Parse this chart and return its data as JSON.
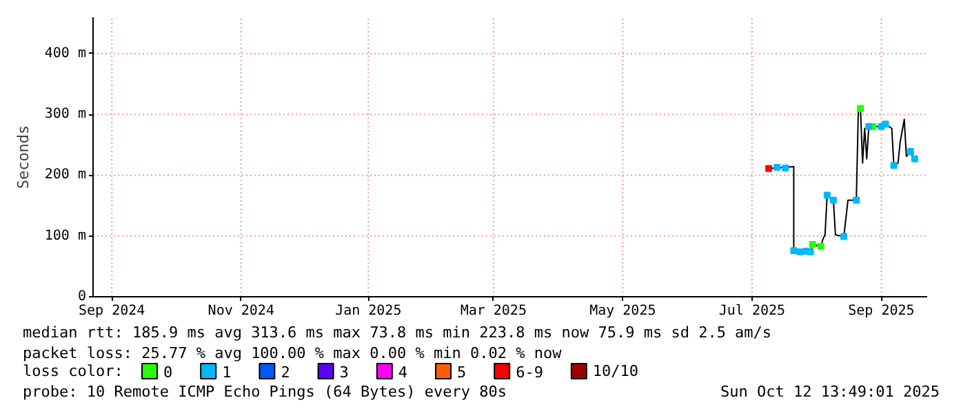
{
  "chart_data": {
    "type": "line",
    "ylabel": "Seconds",
    "xlim": [
      "2024-09-07",
      "2025-10-12"
    ],
    "ylim": [
      0,
      460
    ],
    "xticks": [
      {
        "value": "2024-09-16",
        "label": "Sep 2024"
      },
      {
        "value": "2024-11-17",
        "label": "Nov 2024"
      },
      {
        "value": "2025-01-17",
        "label": "Jan 2025"
      },
      {
        "value": "2025-03-18",
        "label": "Mar 2025"
      },
      {
        "value": "2025-05-19",
        "label": "May 2025"
      },
      {
        "value": "2025-07-20",
        "label": "Jul 2025"
      },
      {
        "value": "2025-09-20",
        "label": "Sep 2025"
      }
    ],
    "yticks": [
      0,
      {
        "value": 100,
        "label": "100 m"
      },
      {
        "value": 200,
        "label": "200 m"
      },
      {
        "value": 300,
        "label": "300 m"
      },
      {
        "value": 400,
        "label": "400 m"
      }
    ],
    "grid": true,
    "legend": "bottom",
    "legend_title": "loss color:",
    "line_style": "solid",
    "series": [
      {
        "color": "#000000",
        "x": [
          "2025-07-28",
          "2025-08-09",
          "2025-08-09",
          "2025-08-17",
          "2025-08-18",
          "2025-08-22",
          "2025-08-23",
          "2025-08-24",
          "2025-08-25",
          "2025-08-28",
          "2025-08-29",
          "2025-09-02",
          "2025-09-04",
          "2025-09-08",
          "2025-09-09",
          "2025-09-10",
          "2025-09-11",
          "2025-09-12",
          "2025-09-13",
          "2025-09-14",
          "2025-09-20",
          "2025-09-22",
          "2025-09-25",
          "2025-09-26",
          "2025-09-28",
          "2025-09-29",
          "2025-10-01",
          "2025-10-02",
          "2025-10-04",
          "2025-10-05",
          "2025-10-06"
        ],
        "values": [
          211,
          214,
          76,
          74,
          86,
          83,
          95,
          102,
          167,
          159,
          102,
          99,
          159,
          159,
          311,
          310,
          220,
          277,
          227,
          280,
          280,
          284,
          277,
          216,
          220,
          254,
          292,
          231,
          239,
          231,
          227
        ]
      },
      {
        "type": "scatter",
        "name": "0",
        "color": "#26ff00",
        "marker": "square",
        "x": [
          "2025-08-18",
          "2025-08-22",
          "2025-09-10",
          "2025-09-16"
        ],
        "values": [
          86,
          83,
          310,
          280
        ]
      },
      {
        "type": "scatter",
        "name": "1",
        "color": "#00b8ff",
        "marker": "square",
        "x": [
          "2025-08-01",
          "2025-08-05",
          "2025-08-09",
          "2025-08-12",
          "2025-08-15",
          "2025-08-17",
          "2025-08-25",
          "2025-08-28",
          "2025-09-02",
          "2025-09-08",
          "2025-09-14",
          "2025-09-20",
          "2025-09-22",
          "2025-09-26",
          "2025-10-04",
          "2025-10-06"
        ],
        "values": [
          213,
          212,
          76,
          74,
          75,
          74,
          167,
          159,
          99,
          159,
          280,
          280,
          284,
          216,
          239,
          227
        ]
      },
      {
        "type": "scatter",
        "name": "2",
        "color": "#0059ff",
        "marker": "square"
      },
      {
        "type": "scatter",
        "name": "3",
        "color": "#5e00ff",
        "marker": "square"
      },
      {
        "type": "scatter",
        "name": "4",
        "color": "#ff00f5",
        "marker": "square"
      },
      {
        "type": "scatter",
        "name": "5",
        "color": "#ff5e00",
        "marker": "square"
      },
      {
        "type": "scatter",
        "name": "6-9",
        "color": "#ff0000",
        "marker": "square",
        "x": [
          "2025-07-28"
        ],
        "values": [
          211
        ]
      },
      {
        "type": "scatter",
        "name": "10/10",
        "color": "#a10000",
        "marker": "square"
      }
    ],
    "annotations": [
      "median rtt:  185.9 ms avg  313.6 ms max  73.8 ms min  223.8 ms now  75.9 ms sd  2.5   am/s",
      "packet loss: 25.77 % avg  100.00 % max  0.00 % min  0.02 % now",
      "probe:       10 Remote ICMP Echo Pings (64 Bytes) every 80s",
      "Sun Oct 12 13:49:01 2025"
    ]
  }
}
